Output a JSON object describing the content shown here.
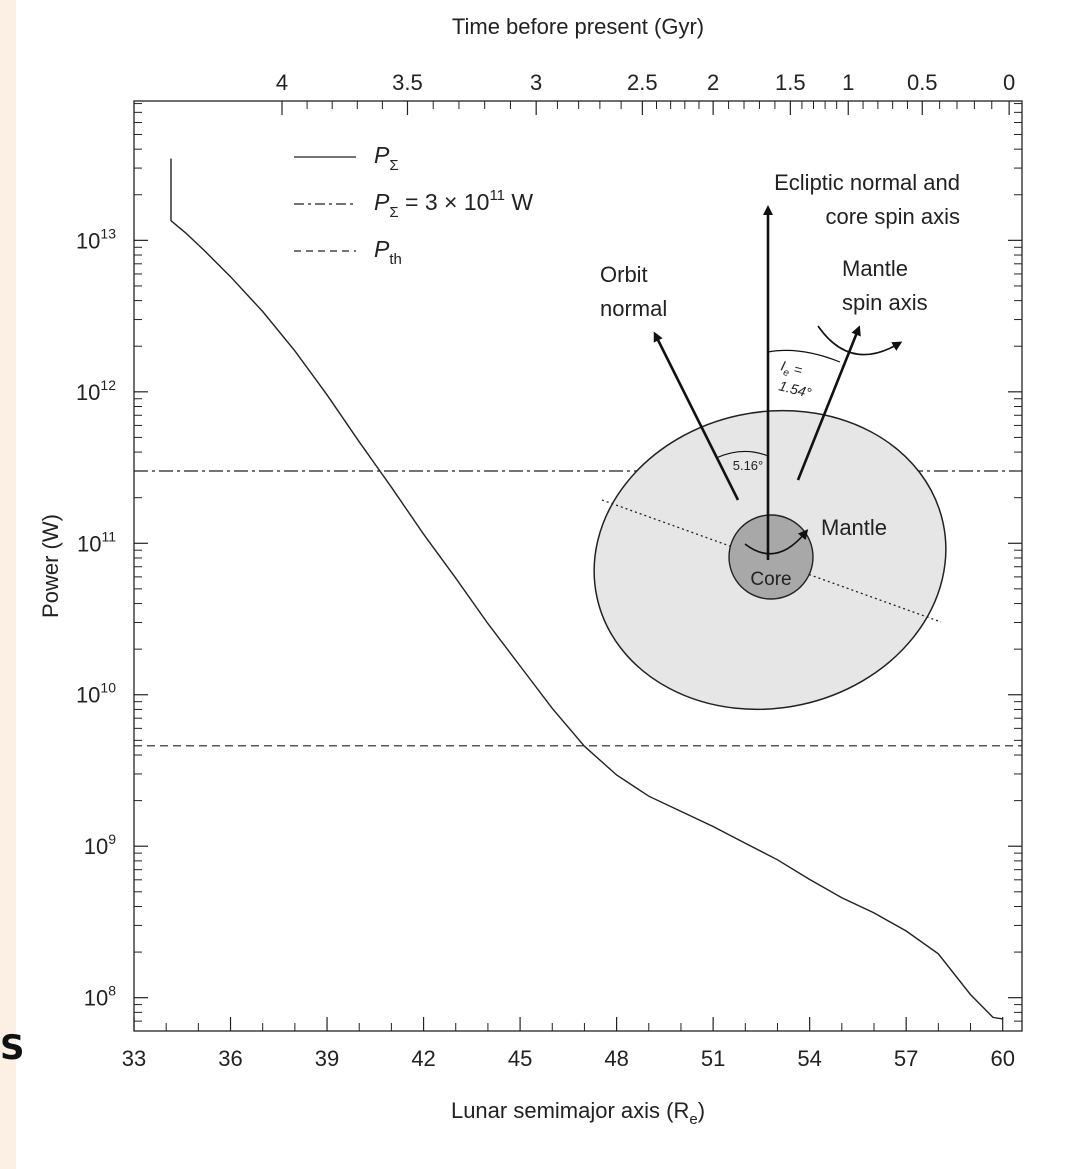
{
  "stray_glyph": "S",
  "chart_data": {
    "type": "line",
    "title": "",
    "xlabel": "Lunar semimajor axis (R",
    "xlabel_sub": "e",
    "xlabel_close": ")",
    "ylabel": "Power (W)",
    "top_axis_label": "Time before present (Gyr)",
    "xlim": [
      33,
      60.6
    ],
    "ylim_log10": [
      7.78,
      13.92
    ],
    "y_scale": "log",
    "x_ticks": [
      33,
      36,
      39,
      42,
      45,
      48,
      51,
      54,
      57,
      60
    ],
    "y_ticks": [
      {
        "exp": 8,
        "base": "10",
        "sup": "8"
      },
      {
        "exp": 9,
        "base": "10",
        "sup": "9"
      },
      {
        "exp": 10,
        "base": "10",
        "sup": "10"
      },
      {
        "exp": 11,
        "base": "10",
        "sup": "11"
      },
      {
        "exp": 12,
        "base": "10",
        "sup": "12"
      },
      {
        "exp": 13,
        "base": "10",
        "sup": "13"
      }
    ],
    "top_ticks": [
      {
        "label": "4",
        "a": 37.6
      },
      {
        "label": "3.5",
        "a": 41.5
      },
      {
        "label": "3",
        "a": 45.5
      },
      {
        "label": "2.5",
        "a": 48.8
      },
      {
        "label": "2",
        "a": 51.0
      },
      {
        "label": "1.5",
        "a": 53.4
      },
      {
        "label": "1",
        "a": 55.2
      },
      {
        "label": "0.5",
        "a": 57.5
      },
      {
        "label": "0",
        "a": 60.2
      }
    ],
    "legend": {
      "placement": "top-left",
      "entries": [
        {
          "name": "P",
          "sub": "Σ",
          "tail": "",
          "style": "solid"
        },
        {
          "name": "P",
          "sub": "Σ",
          "tail": " = 3 × 10",
          "tail_sup": "11",
          "tail_end": " W",
          "style": "dashdot"
        },
        {
          "name": "P",
          "sub": "th",
          "tail": "",
          "style": "dashed"
        }
      ]
    },
    "series": [
      {
        "name": "P_Σ",
        "style": "solid",
        "points": [
          [
            34.15,
            13.54
          ],
          [
            34.15,
            13.13
          ],
          [
            34.6,
            13.05
          ],
          [
            35.2,
            12.93
          ],
          [
            36.0,
            12.76
          ],
          [
            37.0,
            12.53
          ],
          [
            38.0,
            12.27
          ],
          [
            39.0,
            11.98
          ],
          [
            40.0,
            11.67
          ],
          [
            41.0,
            11.37
          ],
          [
            42.0,
            11.06
          ],
          [
            43.0,
            10.77
          ],
          [
            44.0,
            10.47
          ],
          [
            45.0,
            10.19
          ],
          [
            46.0,
            9.91
          ],
          [
            47.0,
            9.66
          ],
          [
            48.0,
            9.47
          ],
          [
            49.0,
            9.33
          ],
          [
            50.0,
            9.23
          ],
          [
            51.0,
            9.13
          ],
          [
            52.0,
            9.02
          ],
          [
            53.0,
            8.91
          ],
          [
            54.0,
            8.78
          ],
          [
            55.0,
            8.66
          ],
          [
            56.0,
            8.56
          ],
          [
            57.0,
            8.44
          ],
          [
            58.0,
            8.29
          ],
          [
            59.0,
            8.02
          ],
          [
            59.7,
            7.87
          ],
          [
            60.0,
            7.86
          ]
        ]
      },
      {
        "name": "P_Σ = 3 × 10^11 W",
        "style": "dashdot",
        "constant": 300000000000.0
      },
      {
        "name": "P_th",
        "style": "dashed",
        "constant": 4600000000.0
      }
    ],
    "inset": {
      "arrow_ecliptic": "Ecliptic normal and",
      "arrow_ecliptic2": "core spin axis",
      "orbit_label": "Orbit",
      "orbit_label2": "normal",
      "mantle_spin_label": "Mantle",
      "mantle_spin_label2": "spin axis",
      "ie_label": "I",
      "ie_sub": "e",
      "ie_eq": " =",
      "ie_value": "1.54°",
      "angle_label": "5.16°",
      "mantle_label": "Mantle",
      "core_label": "Core",
      "mantle_fill": "#e6e6e6",
      "core_fill": "#a8a8a8"
    }
  }
}
